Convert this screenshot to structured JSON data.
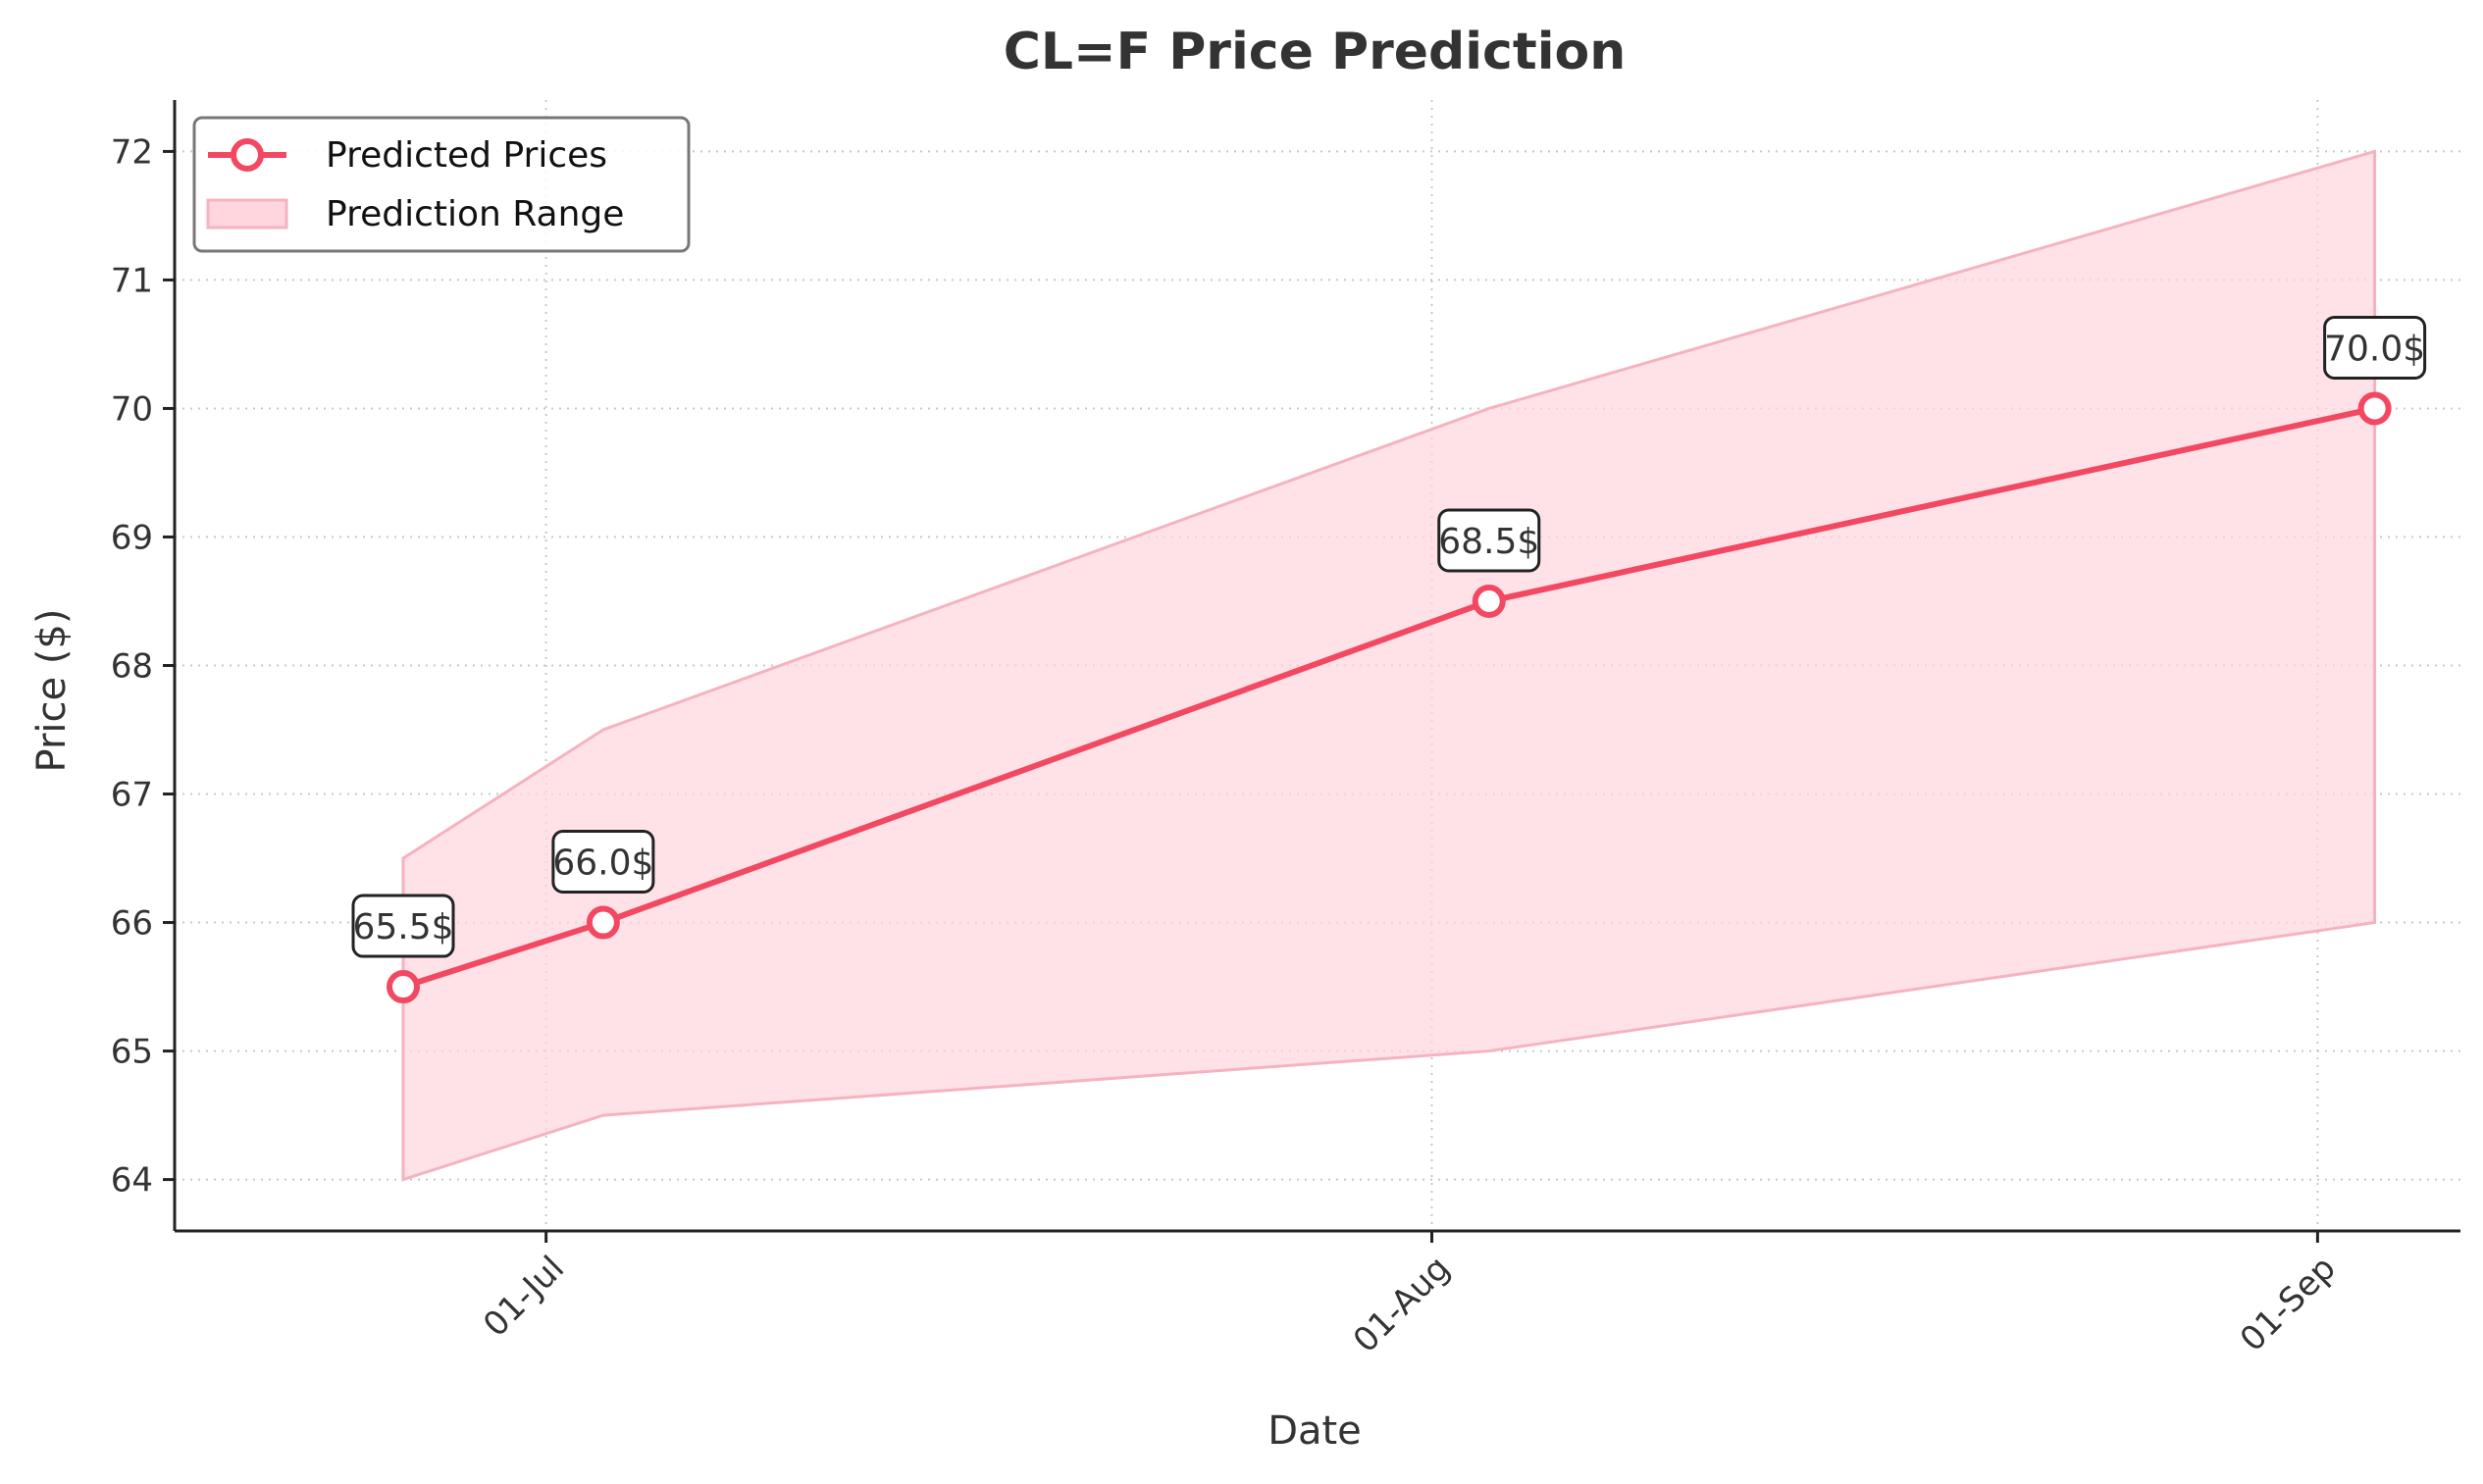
{
  "chart_data": {
    "type": "line",
    "title": "CL=F Price Prediction",
    "xlabel": "Date",
    "ylabel": "Price ($)",
    "x_ticks": [
      {
        "date": "2024-07-01",
        "label": "01-Jul"
      },
      {
        "date": "2024-08-01",
        "label": "01-Aug"
      },
      {
        "date": "2024-09-01",
        "label": "01-Sep"
      }
    ],
    "x_range": [
      "2024-06-18",
      "2024-09-06"
    ],
    "y_ticks": [
      64,
      65,
      66,
      67,
      68,
      69,
      70,
      71,
      72
    ],
    "ylim": [
      63.6,
      72.4
    ],
    "grid": true,
    "legend_position": "top-left",
    "colors": {
      "line": "#f24862",
      "band_fill": "#ffd6de",
      "band_edge": "#f5b3c0",
      "axis": "#222222",
      "grid": "#c8c8c8"
    },
    "series": [
      {
        "name": "Predicted Prices",
        "x": [
          "2024-06-26",
          "2024-07-03",
          "2024-08-03",
          "2024-09-03"
        ],
        "values": [
          65.5,
          66.0,
          68.5,
          70.0
        ],
        "labels": [
          "65.5$",
          "66.0$",
          "68.5$",
          "70.0$"
        ]
      }
    ],
    "range": {
      "name": "Prediction Range",
      "x": [
        "2024-06-26",
        "2024-07-03",
        "2024-08-03",
        "2024-09-03"
      ],
      "lower": [
        64.0,
        64.5,
        65.0,
        66.0
      ],
      "upper": [
        66.5,
        67.5,
        70.0,
        72.0
      ]
    }
  }
}
